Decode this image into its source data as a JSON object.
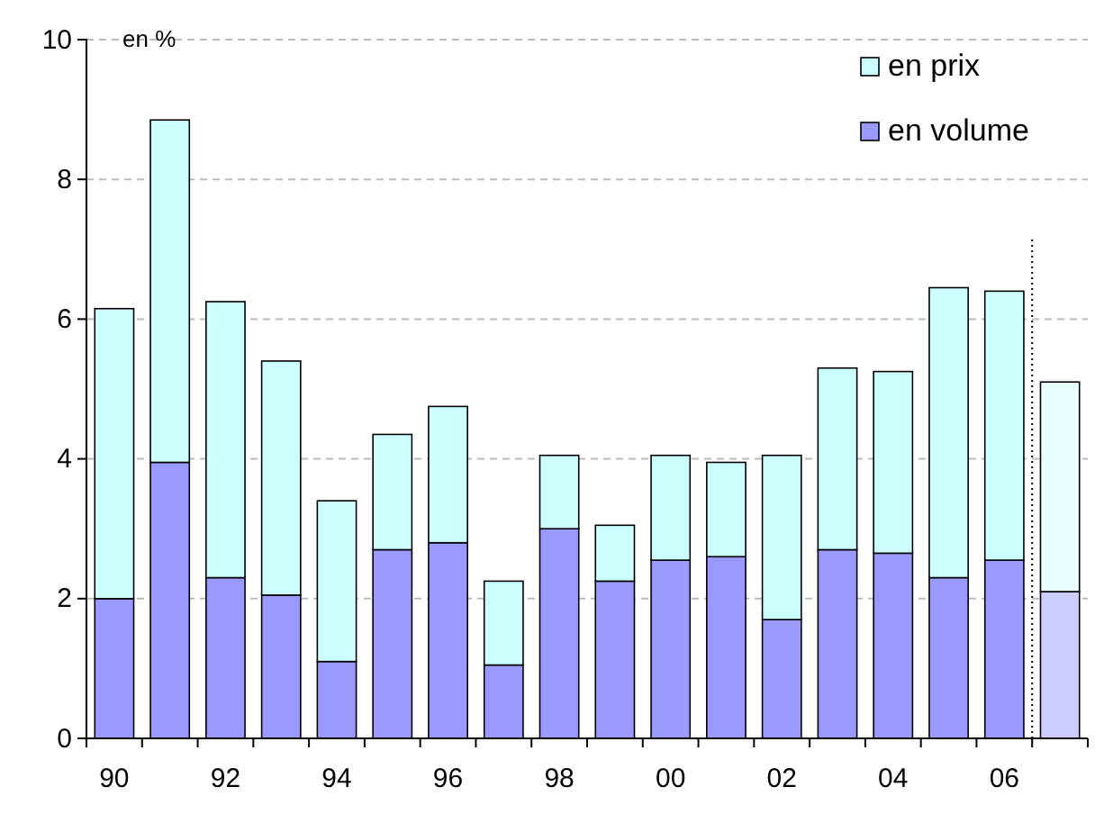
{
  "chart_data": {
    "type": "bar",
    "stacked": true,
    "ylabel": "en %",
    "categories": [
      "90",
      null,
      "92",
      null,
      "94",
      null,
      "96",
      null,
      "98",
      null,
      "00",
      null,
      "02",
      null,
      "04",
      null,
      "06",
      null
    ],
    "series": [
      {
        "name": "en volume",
        "color": "#9999ff",
        "colors": [
          "#9999ff",
          "#9999ff",
          "#9999ff",
          "#9999ff",
          "#9999ff",
          "#9999ff",
          "#9999ff",
          "#9999ff",
          "#9999ff",
          "#9999ff",
          "#9999ff",
          "#9999ff",
          "#9999ff",
          "#9999ff",
          "#9999ff",
          "#9999ff",
          "#9999ff",
          "#ccccff"
        ],
        "values": [
          2.0,
          3.95,
          2.3,
          2.05,
          1.1,
          2.7,
          2.8,
          1.05,
          3.0,
          2.25,
          2.55,
          2.6,
          1.7,
          2.7,
          2.65,
          2.3,
          2.55,
          2.1
        ]
      },
      {
        "name": "en prix",
        "color": "#ccffff",
        "colors": [
          "#ccffff",
          "#ccffff",
          "#ccffff",
          "#ccffff",
          "#ccffff",
          "#ccffff",
          "#ccffff",
          "#ccffff",
          "#ccffff",
          "#ccffff",
          "#ccffff",
          "#ccffff",
          "#ccffff",
          "#ccffff",
          "#ccffff",
          "#ccffff",
          "#ccffff",
          "#eaffff"
        ],
        "values": [
          4.15,
          4.9,
          3.95,
          3.35,
          2.3,
          1.65,
          1.95,
          1.2,
          1.05,
          0.8,
          1.5,
          1.35,
          2.35,
          2.6,
          2.6,
          4.15,
          3.85,
          3.0
        ]
      }
    ],
    "ylim": [
      0,
      10
    ],
    "yticks": [
      0,
      2,
      4,
      6,
      8,
      10
    ],
    "grid": "y",
    "legend": "top right"
  }
}
